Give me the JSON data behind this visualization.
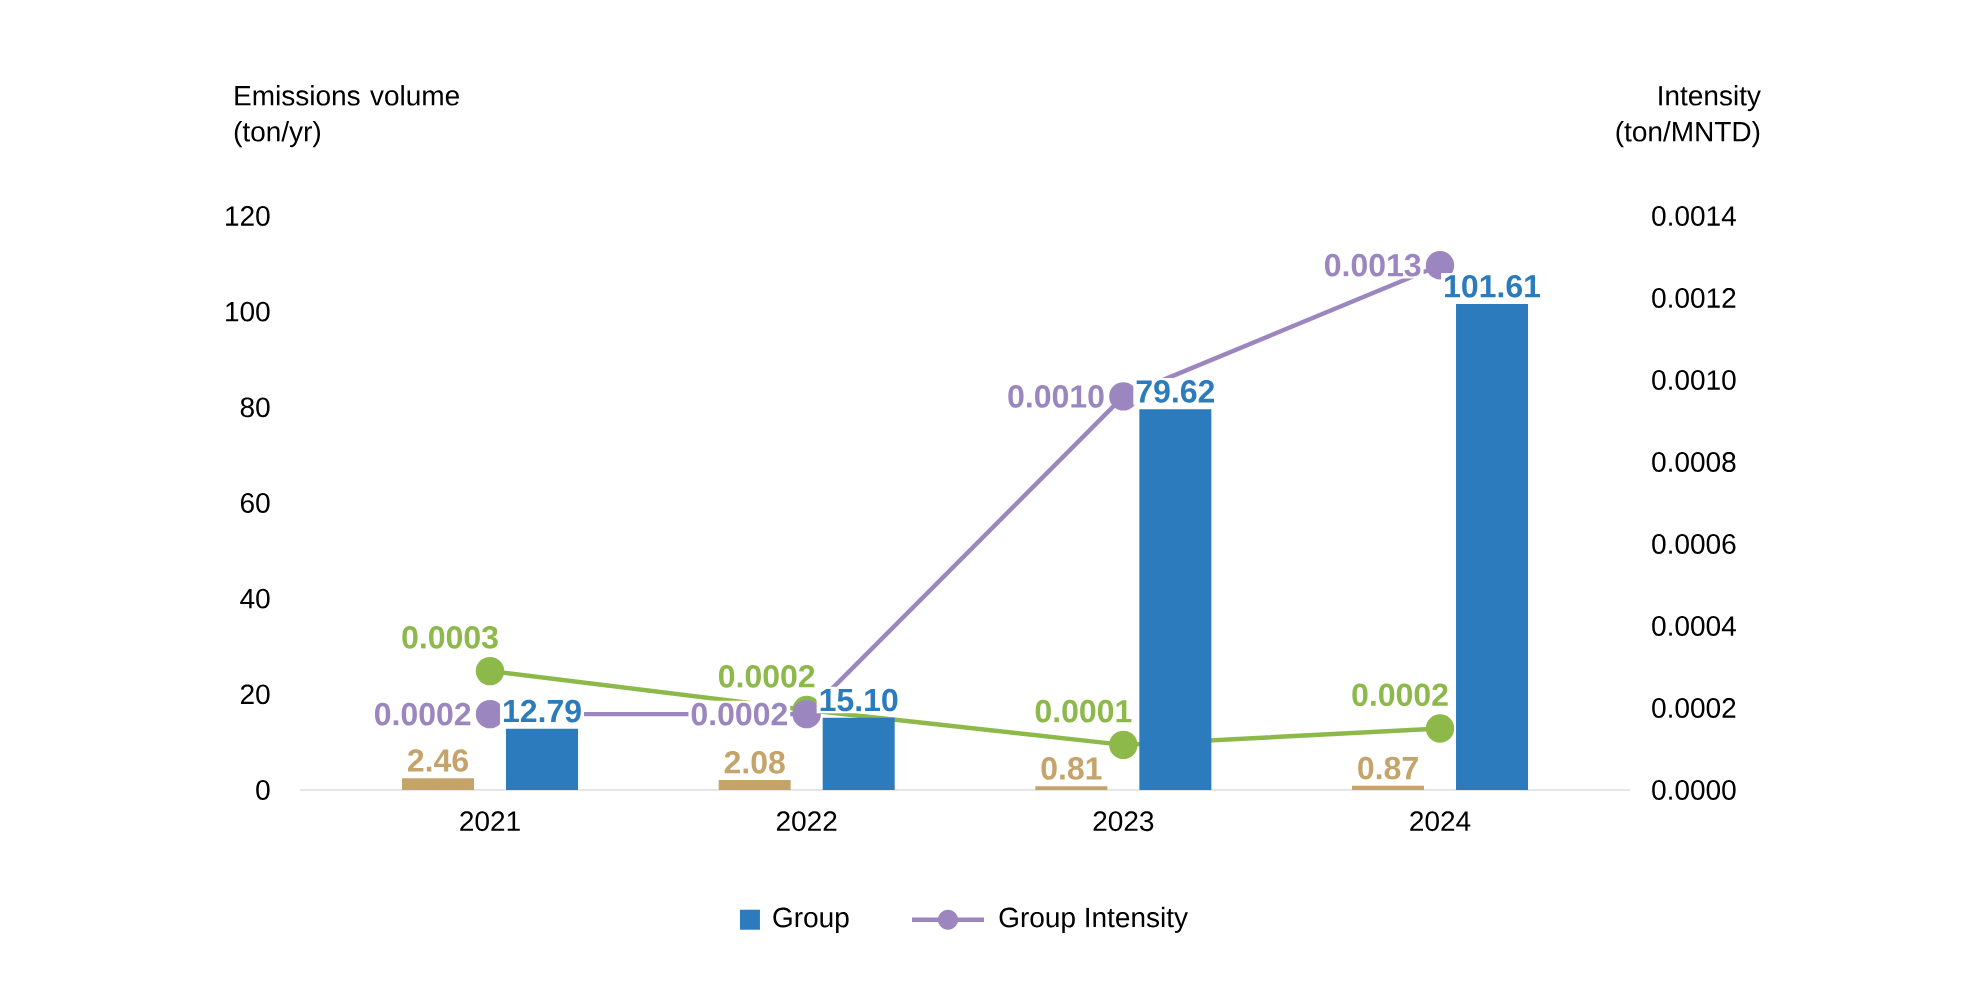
{
  "chart_data": {
    "type": "bar",
    "categories": [
      "2021",
      "2022",
      "2023",
      "2024"
    ],
    "ylabel": "Emissions volume (ton/yr)",
    "y2label": "Intensity (ton/MNTD)",
    "ylim": [
      0,
      120
    ],
    "yticks": [
      0,
      20,
      40,
      60,
      80,
      100,
      120
    ],
    "y2lim": [
      0,
      0.0014
    ],
    "y2ticks": [
      {
        "value": 0,
        "label": "0.0000"
      },
      {
        "value": 0.0002,
        "label": "0.0002"
      },
      {
        "value": 0.0004,
        "label": "0.0004"
      },
      {
        "value": 0.0006,
        "label": "0.0006"
      },
      {
        "value": 0.0008,
        "label": "0.0008"
      },
      {
        "value": 0.001,
        "label": "0.0010"
      },
      {
        "value": 0.0012,
        "label": "0.0012"
      },
      {
        "value": 0.0014,
        "label": "0.0014"
      }
    ],
    "series": [
      {
        "color": "#c4a46a",
        "values": [
          2.46,
          2.08,
          0.81,
          0.87
        ],
        "value_labels": [
          "2.46",
          "2.08",
          "0.81",
          "0.87"
        ]
      },
      {
        "name": "Group",
        "color": "#2b7bbd",
        "values": [
          12.79,
          15.1,
          79.62,
          101.61
        ],
        "value_labels": [
          "12.79",
          "15.10",
          "79.62",
          "101.61"
        ]
      },
      {
        "type": "line",
        "axis": "y2",
        "color": "#8db94a",
        "values": [
          0.00029,
          0.000195,
          0.00011,
          0.00015
        ],
        "value_labels": [
          "0.0003",
          "0.0002",
          "0.0001",
          "0.0002"
        ]
      },
      {
        "name": "Group Intensity",
        "type": "line",
        "axis": "y2",
        "color": "#9b86bf",
        "values": [
          0.000185,
          0.000185,
          0.00096,
          0.00128
        ],
        "value_labels": [
          "0.0002",
          "0.0002",
          "0.0010",
          "0.0013"
        ]
      }
    ],
    "marker": "circle",
    "legend": "bottom"
  }
}
